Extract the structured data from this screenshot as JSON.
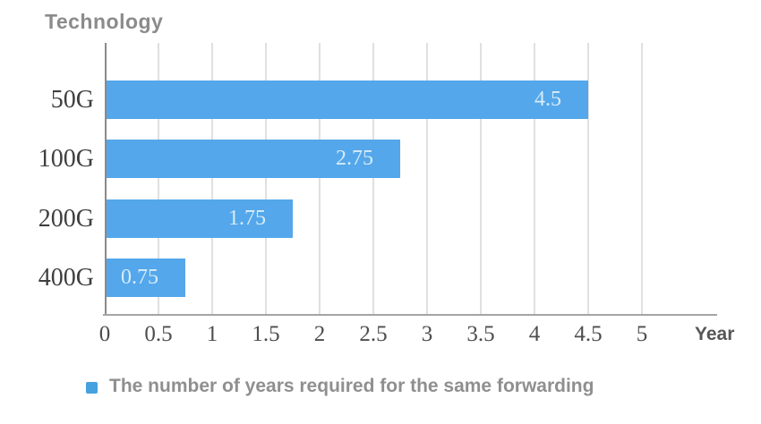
{
  "title": "Technology",
  "xlabel": "Year",
  "legend": {
    "label": "The number of years required for the same forwarding"
  },
  "colors": {
    "bar": "#54a7ea",
    "legend_marker": "#45a1e0",
    "value_label": "#d7ecf9",
    "gridline": "#e0e0e0",
    "y_axis": "#8a8a8a",
    "x_axis": "#a5a5a5",
    "title": "#8b8b8b",
    "category_label": "#3f3f3f",
    "tick_label": "#4d4d4d",
    "xlabel": "#565656",
    "legend_text": "#8f8f8f"
  },
  "chart_data": {
    "type": "bar",
    "orientation": "horizontal",
    "title": "Technology",
    "xlabel": "Year",
    "ylabel": "Technology",
    "categories": [
      "50G",
      "100G",
      "200G",
      "400G"
    ],
    "values": [
      4.5,
      2.75,
      1.75,
      0.75
    ],
    "value_labels": [
      "4.5",
      "2.75",
      "1.75",
      "0.75"
    ],
    "xlim": [
      0,
      5
    ],
    "xticks": [
      0,
      0.5,
      1,
      1.5,
      2,
      2.5,
      3,
      3.5,
      4,
      4.5,
      5
    ],
    "xtick_labels": [
      "0",
      "0.5",
      "1",
      "1.5",
      "2",
      "2.5",
      "3",
      "3.5",
      "4",
      "4.5",
      "5"
    ],
    "grid": true,
    "legend_entries": [
      "The number of years required for the same forwarding"
    ],
    "legend_position": "bottom"
  }
}
